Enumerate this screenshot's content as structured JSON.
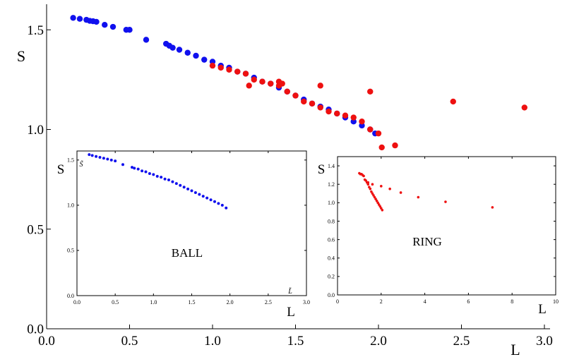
{
  "chart_data": [
    {
      "type": "scatter",
      "role": "main",
      "xlabel": "L",
      "ylabel": "S",
      "xlim": [
        0.0,
        3.0
      ],
      "ylim": [
        0.0,
        1.6
      ],
      "xticks": [
        "0.0",
        "0.5",
        "1.0",
        "1.5",
        "2.0",
        "2.5",
        "3.0"
      ],
      "yticks": [
        "0.0",
        "0.5",
        "1.0",
        "1.5"
      ],
      "series": [
        {
          "color": "#1010ee",
          "x": [
            0.16,
            0.2,
            0.24,
            0.26,
            0.28,
            0.3,
            0.35,
            0.4,
            0.48,
            0.5,
            0.6,
            0.72,
            0.74,
            0.76,
            0.8,
            0.85,
            0.9,
            0.95,
            1.0,
            1.05,
            1.1,
            1.15,
            1.2,
            1.25,
            1.3,
            1.35,
            1.4,
            1.45,
            1.5,
            1.55,
            1.6,
            1.65,
            1.7,
            1.75,
            1.8,
            1.85,
            1.9,
            1.95,
            1.98
          ],
          "y": [
            1.56,
            1.555,
            1.55,
            1.545,
            1.543,
            1.54,
            1.525,
            1.515,
            1.5,
            1.5,
            1.45,
            1.43,
            1.42,
            1.41,
            1.4,
            1.385,
            1.37,
            1.35,
            1.34,
            1.32,
            1.31,
            1.29,
            1.28,
            1.26,
            1.24,
            1.23,
            1.21,
            1.19,
            1.17,
            1.15,
            1.13,
            1.115,
            1.1,
            1.08,
            1.06,
            1.04,
            1.02,
            1.0,
            0.98
          ]
        },
        {
          "color": "#ee1010",
          "x": [
            1.0,
            1.05,
            1.1,
            1.15,
            1.2,
            1.22,
            1.25,
            1.3,
            1.35,
            1.4,
            1.42,
            1.45,
            1.5,
            1.55,
            1.6,
            1.65,
            1.7,
            1.75,
            1.8,
            1.85,
            1.9,
            1.95,
            2.0,
            2.02,
            2.1,
            1.4,
            1.65,
            1.95,
            2.45,
            2.88
          ],
          "y": [
            1.32,
            1.31,
            1.3,
            1.29,
            1.28,
            1.22,
            1.25,
            1.24,
            1.23,
            1.22,
            1.23,
            1.19,
            1.17,
            1.14,
            1.13,
            1.11,
            1.09,
            1.08,
            1.07,
            1.06,
            1.04,
            1.0,
            0.98,
            0.91,
            0.92,
            1.24,
            1.22,
            1.19,
            1.14,
            1.11
          ]
        }
      ]
    },
    {
      "type": "scatter",
      "role": "inset-left",
      "label": "BALL",
      "xlabel": "L",
      "ylabel": "S",
      "xlabel_small": "L̃",
      "ylabel_small": "S̃",
      "xlim": [
        0.0,
        3.0
      ],
      "ylim": [
        0.0,
        1.6
      ],
      "xticks": [
        "0.0",
        "0.5",
        "1.0",
        "1.5",
        "2.0",
        "2.5",
        "3.0"
      ],
      "yticks": [
        "0.0",
        "0.5",
        "1.0",
        "1.5"
      ],
      "series": [
        {
          "color": "#1010ee",
          "x": [
            0.16,
            0.2,
            0.25,
            0.3,
            0.35,
            0.4,
            0.45,
            0.5,
            0.6,
            0.72,
            0.75,
            0.8,
            0.85,
            0.9,
            0.95,
            1.0,
            1.05,
            1.1,
            1.15,
            1.2,
            1.25,
            1.3,
            1.35,
            1.4,
            1.45,
            1.5,
            1.55,
            1.6,
            1.65,
            1.7,
            1.75,
            1.8,
            1.85,
            1.9,
            1.95
          ],
          "y": [
            1.56,
            1.55,
            1.54,
            1.53,
            1.52,
            1.51,
            1.5,
            1.49,
            1.45,
            1.42,
            1.41,
            1.4,
            1.38,
            1.37,
            1.35,
            1.34,
            1.32,
            1.31,
            1.29,
            1.28,
            1.26,
            1.24,
            1.22,
            1.2,
            1.18,
            1.16,
            1.14,
            1.12,
            1.1,
            1.08,
            1.06,
            1.04,
            1.02,
            1.0,
            0.97
          ]
        }
      ]
    },
    {
      "type": "scatter",
      "role": "inset-right",
      "label": "RING",
      "xlabel": "L",
      "ylabel": "S",
      "xlim": [
        0,
        10
      ],
      "ylim": [
        0.0,
        1.5
      ],
      "xticks": [
        "0",
        "2",
        "4",
        "6",
        "8",
        "10"
      ],
      "yticks": [
        "0.0",
        "0.2",
        "0.4",
        "0.6",
        "0.8",
        "1.0",
        "1.2",
        "1.4"
      ],
      "series": [
        {
          "color": "#ee1010",
          "x": [
            1.0,
            1.05,
            1.1,
            1.15,
            1.2,
            1.25,
            1.3,
            1.35,
            1.4,
            1.45,
            1.5,
            1.55,
            1.6,
            1.65,
            1.7,
            1.75,
            1.8,
            1.85,
            1.9,
            1.95,
            2.0,
            2.05,
            1.4,
            1.6,
            2.0,
            2.4,
            2.9,
            3.7,
            4.95,
            7.1
          ],
          "y": [
            1.32,
            1.31,
            1.31,
            1.3,
            1.29,
            1.25,
            1.24,
            1.22,
            1.2,
            1.17,
            1.15,
            1.12,
            1.1,
            1.08,
            1.06,
            1.04,
            1.02,
            1.0,
            0.98,
            0.96,
            0.94,
            0.92,
            1.22,
            1.2,
            1.18,
            1.15,
            1.11,
            1.06,
            1.01,
            0.95
          ]
        }
      ]
    }
  ]
}
